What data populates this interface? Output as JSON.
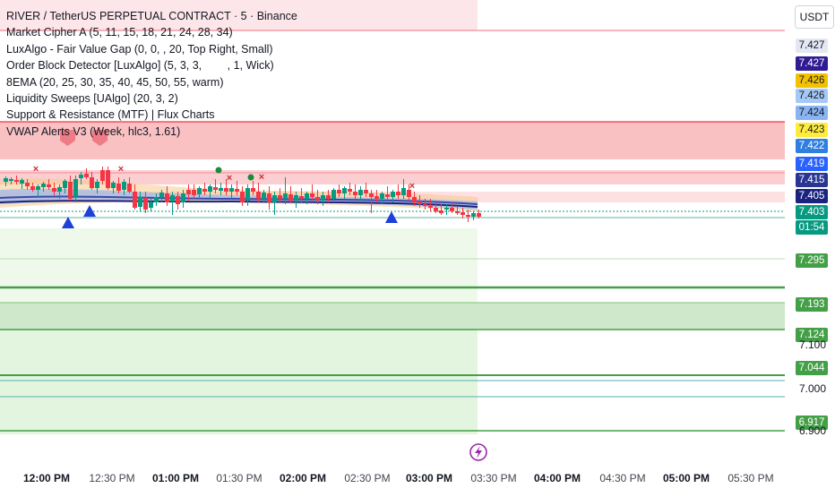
{
  "legend": {
    "title": "RIVER / TetherUS PERPETUAL CONTRACT · 5 · Binance",
    "indicators": [
      "Market Cipher A (5, 11, 15, 18, 21, 24, 28, 34)",
      "LuxAlgo - Fair Value Gap (0, 0, , 20, Top Right, Small)",
      "Order Block Detector [LuxAlgo] (5, 3, 3,   , 1, Wick)",
      "8EMA (20, 25, 30, 35, 40, 45, 50, 55, warm)",
      "Liquidity Sweeps [UAlgo] (20, 3, 2)",
      "Support & Resistance (MTF) | Flux Charts",
      "VWAP Alerts V3 (Week, hlc3, 1.61)"
    ]
  },
  "currency_button": "USDT",
  "price_tags": [
    {
      "text": "7.427",
      "value": 7.427,
      "bg": "#e3e7f1",
      "fg": "#131722"
    },
    {
      "text": "7.427",
      "value": 7.4265,
      "bg": "#311b92",
      "fg": "#ffffff"
    },
    {
      "text": "7.426",
      "value": 7.426,
      "bg": "#f2c200",
      "fg": "#131722"
    },
    {
      "text": "7.426",
      "value": 7.4255,
      "bg": "#a5c8f5",
      "fg": "#131722"
    },
    {
      "text": "7.424",
      "value": 7.424,
      "bg": "#8ab4f0",
      "fg": "#131722"
    },
    {
      "text": "7.423",
      "value": 7.423,
      "bg": "#ffeb3b",
      "fg": "#131722"
    },
    {
      "text": "7.422",
      "value": 7.422,
      "bg": "#2f7fe0",
      "fg": "#ffffff"
    },
    {
      "text": "7.419",
      "value": 7.419,
      "bg": "#2962ff",
      "fg": "#ffffff"
    },
    {
      "text": "7.415",
      "value": 7.415,
      "bg": "#283593",
      "fg": "#ffffff"
    },
    {
      "text": "7.405",
      "value": 7.405,
      "bg": "#1a237e",
      "fg": "#ffffff"
    },
    {
      "text": "7.403",
      "value": 7.403,
      "bg": "#089981",
      "fg": "#ffffff"
    },
    {
      "text": "01:54",
      "value": 7.402,
      "bg": "#089981",
      "fg": "#ffffff"
    },
    {
      "text": "7.295",
      "value": 7.295,
      "bg": "#43a047",
      "fg": "#ffffff"
    },
    {
      "text": "7.193",
      "value": 7.193,
      "bg": "#43a047",
      "fg": "#ffffff"
    },
    {
      "text": "7.124",
      "value": 7.124,
      "bg": "#43a047",
      "fg": "#ffffff"
    },
    {
      "text": "7.044",
      "value": 7.044,
      "bg": "#43a047",
      "fg": "#ffffff"
    },
    {
      "text": "6.917",
      "value": 6.917,
      "bg": "#43a047",
      "fg": "#ffffff"
    }
  ],
  "y_ticks": [
    "7.100",
    "7.000",
    "6.900"
  ],
  "x_ticks": [
    {
      "label": "12:00 PM",
      "bold": true
    },
    {
      "label": "12:30 PM",
      "bold": false
    },
    {
      "label": "01:00 PM",
      "bold": true
    },
    {
      "label": "01:30 PM",
      "bold": false
    },
    {
      "label": "02:00 PM",
      "bold": true
    },
    {
      "label": "02:30 PM",
      "bold": false
    },
    {
      "label": "03:00 PM",
      "bold": true
    },
    {
      "label": "03:30 PM",
      "bold": false
    },
    {
      "label": "04:00 PM",
      "bold": true
    },
    {
      "label": "04:30 PM",
      "bold": false
    },
    {
      "label": "05:00 PM",
      "bold": true
    },
    {
      "label": "05:30 PM",
      "bold": false
    }
  ],
  "colors": {
    "up": "#089981",
    "down": "#f23645",
    "support": "#43a047",
    "resistance": "#f23645"
  },
  "icons": {
    "flash": "lightning-icon",
    "buy": "triangle-up-icon",
    "sell": "x-icon"
  }
}
